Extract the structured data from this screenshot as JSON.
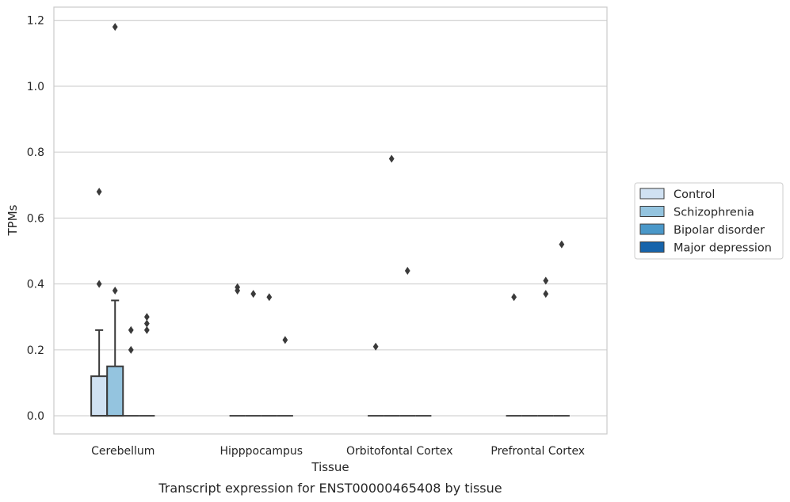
{
  "caption": "Transcript expression for ENST00000465408 by tissue",
  "chart_data": {
    "type": "box",
    "title": "",
    "xlabel": "Tissue",
    "ylabel": "TPMs",
    "ylim": [
      -0.055,
      1.24
    ],
    "yticks": [
      "0.0",
      "0.2",
      "0.4",
      "0.6",
      "0.8",
      "1.0",
      "1.2"
    ],
    "ytick_values": [
      0,
      0.2,
      0.4,
      0.6,
      0.8,
      1.0,
      1.2
    ],
    "grid": "horizontal",
    "legend_position": "right",
    "categories": [
      "Cerebellum",
      "Hipppocampus",
      "Orbitofontal Cortex",
      "Prefrontal Cortex"
    ],
    "series": [
      {
        "name": "Control",
        "color": "#d0e1f2",
        "boxes": [
          {
            "q1": 0,
            "median": 0,
            "q3": 0.12,
            "whisker_low": 0,
            "whisker_high": 0.26,
            "outliers": [
              0.4,
              0.68
            ]
          },
          {
            "q1": 0,
            "median": 0,
            "q3": 0,
            "whisker_low": 0,
            "whisker_high": 0,
            "outliers": [
              0.38,
              0.39
            ]
          },
          {
            "q1": 0,
            "median": 0,
            "q3": 0,
            "whisker_low": 0,
            "whisker_high": 0,
            "outliers": [
              0.21
            ]
          },
          {
            "q1": 0,
            "median": 0,
            "q3": 0,
            "whisker_low": 0,
            "whisker_high": 0,
            "outliers": [
              0.36
            ]
          }
        ]
      },
      {
        "name": "Schizophrenia",
        "color": "#94c4df",
        "boxes": [
          {
            "q1": 0,
            "median": 0,
            "q3": 0.15,
            "whisker_low": 0,
            "whisker_high": 0.35,
            "outliers": [
              0.38,
              1.18
            ]
          },
          {
            "q1": 0,
            "median": 0,
            "q3": 0,
            "whisker_low": 0,
            "whisker_high": 0,
            "outliers": [
              0.37
            ]
          },
          {
            "q1": 0,
            "median": 0,
            "q3": 0,
            "whisker_low": 0,
            "whisker_high": 0,
            "outliers": [
              0.78
            ]
          },
          {
            "q1": 0,
            "median": 0,
            "q3": 0,
            "whisker_low": 0,
            "whisker_high": 0,
            "outliers": []
          }
        ]
      },
      {
        "name": "Bipolar disorder",
        "color": "#4a98c9",
        "boxes": [
          {
            "q1": 0,
            "median": 0,
            "q3": 0,
            "whisker_low": 0,
            "whisker_high": 0,
            "outliers": [
              0.2,
              0.26
            ]
          },
          {
            "q1": 0,
            "median": 0,
            "q3": 0,
            "whisker_low": 0,
            "whisker_high": 0,
            "outliers": [
              0.36
            ]
          },
          {
            "q1": 0,
            "median": 0,
            "q3": 0,
            "whisker_low": 0,
            "whisker_high": 0,
            "outliers": [
              0.44
            ]
          },
          {
            "q1": 0,
            "median": 0,
            "q3": 0,
            "whisker_low": 0,
            "whisker_high": 0,
            "outliers": [
              0.37,
              0.41
            ]
          }
        ]
      },
      {
        "name": "Major depression",
        "color": "#1764ab",
        "boxes": [
          {
            "q1": 0,
            "median": 0,
            "q3": 0,
            "whisker_low": 0,
            "whisker_high": 0,
            "outliers": [
              0.26,
              0.28,
              0.3
            ]
          },
          {
            "q1": 0,
            "median": 0,
            "q3": 0,
            "whisker_low": 0,
            "whisker_high": 0,
            "outliers": [
              0.23
            ]
          },
          {
            "q1": 0,
            "median": 0,
            "q3": 0,
            "whisker_low": 0,
            "whisker_high": 0,
            "outliers": []
          },
          {
            "q1": 0,
            "median": 0,
            "q3": 0,
            "whisker_low": 0,
            "whisker_high": 0,
            "outliers": [
              0.52
            ]
          }
        ]
      }
    ]
  }
}
